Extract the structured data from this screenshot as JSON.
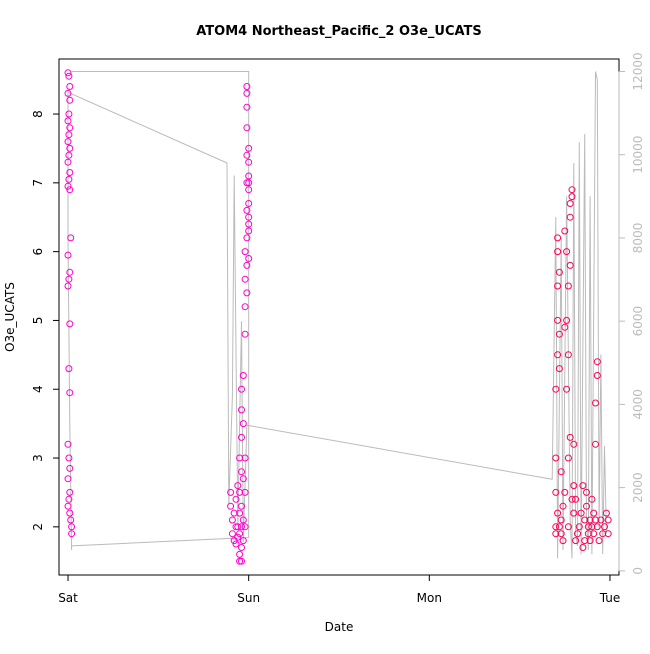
{
  "chart_data": {
    "type": "scatter",
    "title": "ATOM4 Northeast_Pacific_2 O3e_UCATS",
    "xlabel": "Date",
    "ylabel": "O3e_UCATS",
    "x_ticks": [
      "Sat",
      "Sun",
      "Mon",
      "Tue"
    ],
    "xlim_days": [
      -0.05,
      3.05
    ],
    "ylim": [
      1.3,
      8.8
    ],
    "y_ticks": [
      2,
      3,
      4,
      5,
      6,
      7,
      8
    ],
    "y2lim": [
      -100,
      12300
    ],
    "y2_ticks": [
      0,
      2000,
      4000,
      6000,
      8000,
      10000,
      12000
    ],
    "grid": false,
    "legend": "none",
    "colors": {
      "points_early": "#ff00cc",
      "points_late": "#ff0055",
      "altitude_line": "#bbbbbb",
      "axis": "#000000",
      "right_axis": "#bbbbbb"
    },
    "series": [
      {
        "type": "scatter",
        "y_axis": "left",
        "points": [
          [
            0.0,
            8.6
          ],
          [
            0.005,
            8.55
          ],
          [
            0.01,
            8.4
          ],
          [
            0.0,
            8.3
          ],
          [
            0.01,
            8.2
          ],
          [
            0.005,
            8.0
          ],
          [
            0.0,
            7.9
          ],
          [
            0.01,
            7.8
          ],
          [
            0.005,
            7.7
          ],
          [
            0.0,
            7.6
          ],
          [
            0.01,
            7.5
          ],
          [
            0.005,
            7.4
          ],
          [
            0.0,
            7.3
          ],
          [
            0.01,
            7.15
          ],
          [
            0.005,
            7.05
          ],
          [
            0.0,
            6.95
          ],
          [
            0.01,
            6.9
          ],
          [
            0.015,
            6.2
          ],
          [
            0.0,
            5.95
          ],
          [
            0.01,
            5.7
          ],
          [
            0.005,
            5.6
          ],
          [
            0.0,
            5.5
          ],
          [
            0.01,
            4.95
          ],
          [
            0.005,
            4.3
          ],
          [
            0.01,
            3.95
          ],
          [
            0.0,
            3.2
          ],
          [
            0.005,
            3.0
          ],
          [
            0.01,
            2.85
          ],
          [
            0.0,
            2.7
          ],
          [
            0.01,
            2.5
          ],
          [
            0.005,
            2.4
          ],
          [
            0.0,
            2.3
          ],
          [
            0.01,
            2.2
          ],
          [
            0.015,
            2.1
          ],
          [
            0.02,
            2.0
          ],
          [
            0.02,
            1.9
          ],
          [
            0.9,
            2.5
          ],
          [
            0.9,
            2.3
          ],
          [
            0.91,
            2.1
          ],
          [
            0.91,
            1.9
          ],
          [
            0.92,
            1.8
          ],
          [
            0.92,
            2.2
          ],
          [
            0.93,
            2.4
          ],
          [
            0.93,
            2.0
          ],
          [
            0.93,
            1.75
          ],
          [
            0.94,
            2.6
          ],
          [
            0.94,
            2.0
          ],
          [
            0.94,
            1.85
          ],
          [
            0.95,
            3.0
          ],
          [
            0.95,
            2.5
          ],
          [
            0.95,
            2.2
          ],
          [
            0.95,
            1.9
          ],
          [
            0.95,
            1.6
          ],
          [
            0.95,
            1.5
          ],
          [
            0.96,
            3.3
          ],
          [
            0.96,
            2.8
          ],
          [
            0.96,
            2.3
          ],
          [
            0.96,
            2.0
          ],
          [
            0.96,
            1.7
          ],
          [
            0.96,
            1.5
          ],
          [
            0.96,
            3.7
          ],
          [
            0.96,
            4.0
          ],
          [
            0.97,
            4.2
          ],
          [
            0.97,
            3.5
          ],
          [
            0.97,
            2.7
          ],
          [
            0.97,
            2.1
          ],
          [
            0.97,
            1.8
          ],
          [
            0.98,
            3.0
          ],
          [
            0.98,
            2.5
          ],
          [
            0.98,
            2.0
          ],
          [
            0.98,
            4.8
          ],
          [
            0.98,
            5.2
          ],
          [
            0.98,
            5.6
          ],
          [
            0.98,
            6.0
          ],
          [
            0.99,
            5.4
          ],
          [
            0.99,
            5.8
          ],
          [
            0.99,
            6.2
          ],
          [
            0.99,
            6.6
          ],
          [
            0.99,
            7.0
          ],
          [
            0.99,
            7.4
          ],
          [
            0.99,
            7.8
          ],
          [
            0.99,
            8.1
          ],
          [
            0.99,
            8.3
          ],
          [
            0.99,
            8.4
          ],
          [
            1.0,
            6.3
          ],
          [
            1.0,
            6.7
          ],
          [
            1.0,
            7.1
          ],
          [
            1.0,
            7.5
          ],
          [
            1.0,
            6.5
          ],
          [
            1.0,
            5.9
          ],
          [
            1.0,
            6.9
          ],
          [
            1.0,
            7.3
          ],
          [
            1.0,
            7.0
          ],
          [
            1.0,
            6.4
          ],
          [
            2.7,
            2.0
          ],
          [
            2.7,
            1.9
          ],
          [
            2.7,
            2.5
          ],
          [
            2.7,
            3.0
          ],
          [
            2.7,
            4.0
          ],
          [
            2.71,
            4.5
          ],
          [
            2.71,
            5.0
          ],
          [
            2.71,
            5.5
          ],
          [
            2.71,
            6.0
          ],
          [
            2.71,
            6.2
          ],
          [
            2.71,
            2.2
          ],
          [
            2.72,
            4.3
          ],
          [
            2.72,
            4.8
          ],
          [
            2.72,
            5.7
          ],
          [
            2.72,
            2.0
          ],
          [
            2.73,
            2.1
          ],
          [
            2.73,
            1.9
          ],
          [
            2.73,
            2.8
          ],
          [
            2.74,
            1.8
          ],
          [
            2.74,
            2.3
          ],
          [
            2.75,
            2.5
          ],
          [
            2.75,
            4.9
          ],
          [
            2.75,
            6.3
          ],
          [
            2.76,
            6.0
          ],
          [
            2.76,
            5.0
          ],
          [
            2.76,
            4.0
          ],
          [
            2.77,
            2.0
          ],
          [
            2.77,
            3.0
          ],
          [
            2.77,
            4.5
          ],
          [
            2.77,
            5.5
          ],
          [
            2.78,
            6.5
          ],
          [
            2.78,
            6.7
          ],
          [
            2.78,
            5.8
          ],
          [
            2.78,
            3.3
          ],
          [
            2.79,
            2.4
          ],
          [
            2.79,
            6.9
          ],
          [
            2.79,
            6.8
          ],
          [
            2.8,
            2.6
          ],
          [
            2.8,
            2.2
          ],
          [
            2.8,
            3.2
          ],
          [
            2.81,
            1.8
          ],
          [
            2.81,
            2.4
          ],
          [
            2.82,
            1.9
          ],
          [
            2.83,
            2.0
          ],
          [
            2.84,
            2.2
          ],
          [
            2.85,
            1.7
          ],
          [
            2.85,
            2.6
          ],
          [
            2.86,
            2.1
          ],
          [
            2.86,
            1.8
          ],
          [
            2.87,
            2.5
          ],
          [
            2.87,
            2.3
          ],
          [
            2.88,
            2.0
          ],
          [
            2.88,
            1.9
          ],
          [
            2.89,
            1.8
          ],
          [
            2.89,
            2.1
          ],
          [
            2.9,
            2.0
          ],
          [
            2.9,
            2.4
          ],
          [
            2.91,
            2.2
          ],
          [
            2.91,
            1.9
          ],
          [
            2.92,
            2.1
          ],
          [
            2.92,
            3.2
          ],
          [
            2.92,
            3.8
          ],
          [
            2.93,
            4.2
          ],
          [
            2.93,
            4.4
          ],
          [
            2.93,
            2.0
          ],
          [
            2.94,
            1.8
          ],
          [
            2.95,
            2.1
          ],
          [
            2.96,
            1.9
          ],
          [
            2.97,
            2.0
          ],
          [
            2.98,
            2.2
          ],
          [
            2.99,
            1.9
          ],
          [
            2.99,
            2.1
          ]
        ]
      },
      {
        "name": "",
        "type": "line",
        "y_axis": "right",
        "points": [
          [
            0.02,
            12000
          ],
          [
            1.0,
            12000
          ],
          [
            1.0,
            11800
          ],
          [
            1.0,
            800
          ],
          [
            0.02,
            600
          ],
          [
            0.02,
            500
          ],
          [
            0.01,
            3500
          ],
          [
            0.0,
            8000
          ],
          [
            0.0,
            11500
          ],
          [
            0.88,
            9800
          ],
          [
            0.89,
            1600
          ],
          [
            0.91,
            4200
          ],
          [
            0.92,
            9500
          ],
          [
            0.94,
            1100
          ],
          [
            0.96,
            6000
          ],
          [
            0.97,
            700
          ],
          [
            0.99,
            3500
          ],
          [
            2.68,
            2200
          ],
          [
            2.7,
            8500
          ],
          [
            2.71,
            300
          ],
          [
            2.73,
            8000
          ],
          [
            2.74,
            500
          ],
          [
            2.76,
            9000
          ],
          [
            2.78,
            1200
          ],
          [
            2.79,
            300
          ],
          [
            2.8,
            9800
          ],
          [
            2.81,
            900
          ],
          [
            2.82,
            600
          ],
          [
            2.83,
            10300
          ],
          [
            2.84,
            400
          ],
          [
            2.86,
            10500
          ],
          [
            2.87,
            1200
          ],
          [
            2.88,
            500
          ],
          [
            2.89,
            9000
          ],
          [
            2.9,
            400
          ],
          [
            2.92,
            12000
          ],
          [
            2.93,
            11800
          ],
          [
            2.94,
            1000
          ],
          [
            2.95,
            5200
          ],
          [
            2.96,
            400
          ],
          [
            2.97,
            3000
          ],
          [
            2.98,
            900
          ]
        ]
      }
    ]
  }
}
